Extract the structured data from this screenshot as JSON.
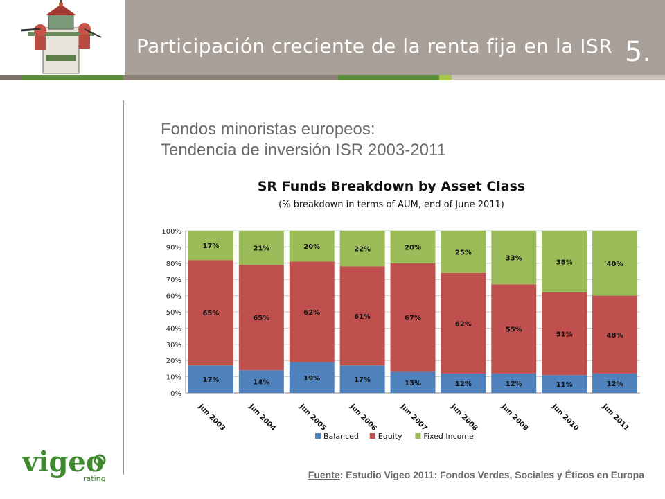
{
  "header": {
    "title": "Participación creciente de la renta fija en la ISR",
    "number": "5."
  },
  "colors": {
    "header_bg": "#a8a098",
    "stripe_brown": "#8a7f72",
    "stripe_green": "#5b8c3a",
    "stripe_lightgreen": "#a9c84a",
    "balanced": "#4f81bd",
    "equity": "#c0504d",
    "fixed_income": "#9bbb59"
  },
  "subtitle": {
    "line1": "Fondos minoristas europeos:",
    "line2": "Tendencia de inversión ISR 2003-2011"
  },
  "chart_data": {
    "type": "bar",
    "stacked": true,
    "title": "SR Funds  Breakdown by Asset Class",
    "subtitle": "(% breakdown in terms of AUM, end of June 2011)",
    "categories": [
      "Jun 2003",
      "Jun 2004",
      "Jun 2005",
      "Jun 2006",
      "Jun 2007",
      "Jun 2008",
      "Jun 2009",
      "Jun 2010",
      "Jun 2011"
    ],
    "ylim": [
      0,
      100
    ],
    "yticks": [
      "0%",
      "10%",
      "20%",
      "30%",
      "40%",
      "50%",
      "60%",
      "70%",
      "80%",
      "90%",
      "100%"
    ],
    "series": [
      {
        "name": "Balanced",
        "color": "#4f81bd",
        "values": [
          17,
          14,
          19,
          17,
          13,
          12,
          12,
          11,
          12
        ],
        "labels": [
          "17%",
          "14%",
          "19%",
          "17%",
          "13%",
          "12%",
          "12%",
          "11%",
          "12%"
        ]
      },
      {
        "name": "Equity",
        "color": "#c0504d",
        "values": [
          65,
          65,
          62,
          61,
          67,
          62,
          55,
          51,
          48
        ],
        "labels": [
          "65%",
          "65%",
          "62%",
          "61%",
          "67%",
          "62%",
          "55%",
          "51%",
          "48%"
        ]
      },
      {
        "name": "Fixed Income",
        "color": "#9bbb59",
        "values": [
          17,
          21,
          20,
          22,
          20,
          25,
          33,
          38,
          40
        ],
        "labels": [
          "17%",
          "21%",
          "20%",
          "22%",
          "20%",
          "25%",
          "33%",
          "38%",
          "40%"
        ]
      }
    ],
    "legend": "bottom"
  },
  "source": {
    "label": "Fuente",
    "text": ": Estudio Vigeo 2011: Fondos Verdes, Sociales y Éticos en Europa"
  },
  "logo": {
    "brand": "vigeo",
    "tagline": "rating"
  }
}
